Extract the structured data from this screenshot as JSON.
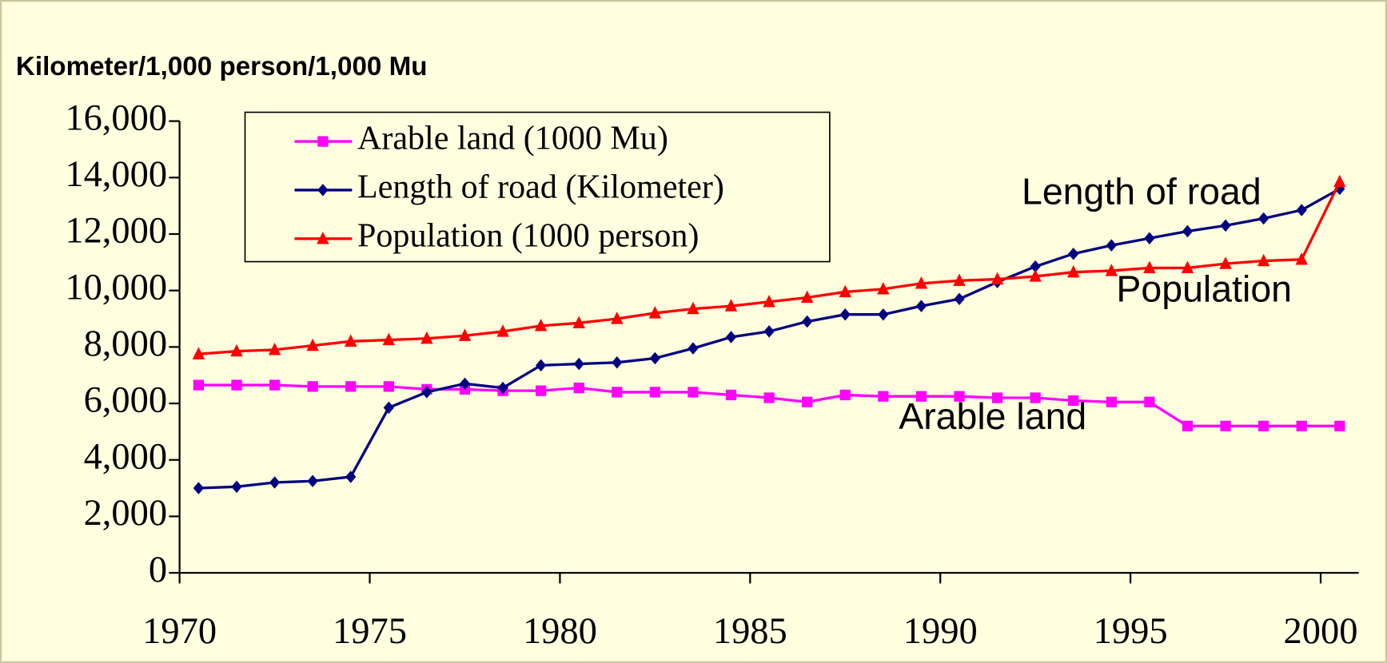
{
  "chart_data": {
    "type": "line",
    "y_axis_label": "Kilometer/1,000 person/1,000 Mu",
    "categories": [
      "1970",
      null,
      null,
      null,
      null,
      "1975",
      null,
      null,
      null,
      null,
      "1980",
      null,
      null,
      null,
      null,
      "1985",
      null,
      null,
      null,
      null,
      "1990",
      null,
      null,
      null,
      null,
      "1995",
      null,
      null,
      null,
      null,
      "2000"
    ],
    "series": [
      {
        "name": "Arable land (1000 Mu)",
        "color": "#ff00ff",
        "marker": "square",
        "values": [
          6650,
          6650,
          6650,
          6600,
          6600,
          6600,
          6500,
          6500,
          6450,
          6450,
          6550,
          6400,
          6400,
          6400,
          6300,
          6200,
          6050,
          6300,
          6250,
          6250,
          6250,
          6200,
          6200,
          6100,
          6050,
          6050,
          5200,
          5200,
          5200,
          5200,
          5200
        ]
      },
      {
        "name": "Length of road (Kilometer)",
        "color": "#000080",
        "marker": "diamond",
        "values": [
          3000,
          3050,
          3200,
          3250,
          3400,
          5850,
          6400,
          6700,
          6550,
          7350,
          7400,
          7450,
          7600,
          7950,
          8350,
          8550,
          8900,
          9150,
          9150,
          9450,
          9700,
          10300,
          10850,
          11300,
          11600,
          11850,
          12100,
          12300,
          12550,
          12850,
          13600
        ]
      },
      {
        "name": "Population (1000 person)",
        "color": "#ff0000",
        "marker": "triangle",
        "values": [
          7750,
          7850,
          7900,
          8050,
          8200,
          8250,
          8300,
          8400,
          8550,
          8750,
          8850,
          9000,
          9200,
          9350,
          9450,
          9600,
          9750,
          9950,
          10050,
          10250,
          10350,
          10400,
          10500,
          10650,
          10700,
          10800,
          10800,
          10950,
          11050,
          11100,
          13850
        ]
      }
    ],
    "annotations": [
      "Length of road",
      "Population",
      "Arable land"
    ],
    "ylim": [
      0,
      16000
    ],
    "yticks": [
      0,
      {
        "value": 2000,
        "label": "2,000"
      },
      {
        "value": 4000,
        "label": "4,000"
      },
      {
        "value": 6000,
        "label": "6,000"
      },
      {
        "value": 8000,
        "label": "8,000"
      },
      {
        "value": 10000,
        "label": "10,000"
      },
      {
        "value": 12000,
        "label": "12,000"
      },
      {
        "value": 14000,
        "label": "14,000"
      },
      {
        "value": 16000,
        "label": "16,000"
      }
    ],
    "legend": "upper left"
  }
}
